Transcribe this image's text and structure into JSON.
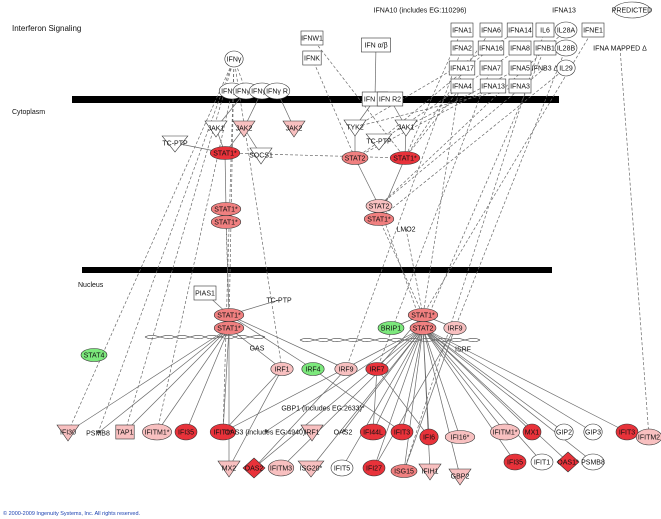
{
  "title": "Interferon Signaling",
  "regions": {
    "cytoplasm": "Cytoplasm",
    "nucleus": "Nucleus"
  },
  "copyright": "© 2000-2009 Ingenuity Systems, Inc. All rights reserved.",
  "colors": {
    "red": "#e8323a",
    "mid_red": "#f08080",
    "light_red": "#f8c0c0",
    "white": "#ffffff",
    "green": "#7ce87c",
    "membrane": "#000000"
  },
  "nodes": [
    {
      "id": "ifna10",
      "label": "IFNA10 (includes EG:110296)",
      "shape": "text",
      "color": "white"
    },
    {
      "id": "ifna13p",
      "label": "IFNA13",
      "shape": "text",
      "color": "white"
    },
    {
      "id": "predicted",
      "label": "PREDICTED",
      "shape": "circle",
      "color": "white"
    },
    {
      "id": "ifnw1",
      "label": "IFNW1",
      "shape": "square",
      "color": "white"
    },
    {
      "id": "ifnk",
      "label": "IFNK",
      "shape": "square",
      "color": "white"
    },
    {
      "id": "ifnab",
      "label": "IFN α/β",
      "shape": "square",
      "color": "white"
    },
    {
      "id": "ifna1",
      "label": "IFNA1",
      "shape": "square",
      "color": "white"
    },
    {
      "id": "ifna6",
      "label": "IFNA6",
      "shape": "square",
      "color": "white"
    },
    {
      "id": "ifna14",
      "label": "IFNA14",
      "shape": "square",
      "color": "white"
    },
    {
      "id": "il6",
      "label": "IL6",
      "shape": "square",
      "color": "white"
    },
    {
      "id": "il28a",
      "label": "IL28A",
      "shape": "circle",
      "color": "white"
    },
    {
      "id": "ifne1",
      "label": "IFNE1",
      "shape": "square",
      "color": "white"
    },
    {
      "id": "ifna2",
      "label": "IFNA2",
      "shape": "square",
      "color": "white"
    },
    {
      "id": "ifna16",
      "label": "IFNA16",
      "shape": "square",
      "color": "white"
    },
    {
      "id": "ifna8",
      "label": "IFNA8",
      "shape": "square",
      "color": "white"
    },
    {
      "id": "ifnb1",
      "label": "IFNB1",
      "shape": "square",
      "color": "white"
    },
    {
      "id": "il28b",
      "label": "IL28B",
      "shape": "circle",
      "color": "white"
    },
    {
      "id": "ifnamapped",
      "label": "IFNA MAPPED Δ",
      "shape": "text",
      "color": "white"
    },
    {
      "id": "ifna17",
      "label": "IFNA17",
      "shape": "square",
      "color": "white"
    },
    {
      "id": "ifna7",
      "label": "IFNA7",
      "shape": "square",
      "color": "white"
    },
    {
      "id": "ifna5",
      "label": "IFNA5",
      "shape": "square",
      "color": "white"
    },
    {
      "id": "ifnb3",
      "label": "IFNB3 Δ",
      "shape": "text",
      "color": "white"
    },
    {
      "id": "il29",
      "label": "IL29",
      "shape": "circle",
      "color": "white"
    },
    {
      "id": "ifna4",
      "label": "IFNA4",
      "shape": "square",
      "color": "white"
    },
    {
      "id": "ifna13",
      "label": "IFNA13",
      "shape": "square",
      "color": "white"
    },
    {
      "id": "ifna3",
      "label": "IFNA3",
      "shape": "square",
      "color": "white"
    },
    {
      "id": "ifng",
      "label": "IFNγ",
      "shape": "circle",
      "color": "white"
    },
    {
      "id": "ifngr1",
      "label": "IFNγ R",
      "shape": "circle",
      "color": "white"
    },
    {
      "id": "ifngr2",
      "label": "IFNγ R",
      "shape": "circle",
      "color": "white"
    },
    {
      "id": "ifngr3",
      "label": "IFNγ R",
      "shape": "circle",
      "color": "white"
    },
    {
      "id": "ifngr4",
      "label": "IFNγ R",
      "shape": "circle",
      "color": "white"
    },
    {
      "id": "ifnar1",
      "label": "IFN R1",
      "shape": "square",
      "color": "white"
    },
    {
      "id": "ifnar2",
      "label": "IFN R2",
      "shape": "square",
      "color": "white"
    },
    {
      "id": "jak1a",
      "label": "JAK1",
      "shape": "tri",
      "color": "white"
    },
    {
      "id": "jak2a",
      "label": "JAK2",
      "shape": "tri",
      "color": "light_red"
    },
    {
      "id": "jak2b",
      "label": "JAK2",
      "shape": "tri",
      "color": "light_red"
    },
    {
      "id": "tcptp1",
      "label": "TC-PTP",
      "shape": "tri",
      "color": "white"
    },
    {
      "id": "socs1",
      "label": "SOCS1",
      "shape": "tri",
      "color": "white"
    },
    {
      "id": "tyk2",
      "label": "TYK2",
      "shape": "tri",
      "color": "white"
    },
    {
      "id": "tcptp2",
      "label": "TC-PTP",
      "shape": "tri",
      "color": "white"
    },
    {
      "id": "jak1b",
      "label": "JAK1",
      "shape": "tri",
      "color": "white"
    },
    {
      "id": "stat1a",
      "label": "STAT1*",
      "shape": "ellipse",
      "color": "red"
    },
    {
      "id": "stat2a",
      "label": "STAT2",
      "shape": "ellipse",
      "color": "mid_red"
    },
    {
      "id": "stat1b",
      "label": "STAT1*",
      "shape": "ellipse",
      "color": "red"
    },
    {
      "id": "stat1c",
      "label": "STAT1*",
      "shape": "ellipse",
      "color": "mid_red"
    },
    {
      "id": "stat1d",
      "label": "STAT1*",
      "shape": "ellipse",
      "color": "mid_red"
    },
    {
      "id": "stat2b",
      "label": "STAT2",
      "shape": "ellipse",
      "color": "light_red"
    },
    {
      "id": "stat1e",
      "label": "STAT1*",
      "shape": "ellipse",
      "color": "mid_red"
    },
    {
      "id": "lmo2",
      "label": "LMO2",
      "shape": "text",
      "color": "white"
    },
    {
      "id": "pias1",
      "label": "PIAS1",
      "shape": "square",
      "color": "white"
    },
    {
      "id": "tcptp3",
      "label": "TC-PTP",
      "shape": "text",
      "color": "white"
    },
    {
      "id": "stat1f",
      "label": "STAT1*",
      "shape": "ellipse",
      "color": "mid_red"
    },
    {
      "id": "stat1g",
      "label": "STAT1*",
      "shape": "ellipse",
      "color": "mid_red"
    },
    {
      "id": "stat1h",
      "label": "STAT1*",
      "shape": "ellipse",
      "color": "mid_red"
    },
    {
      "id": "brip1",
      "label": "BRIP1",
      "shape": "ellipse",
      "color": "green"
    },
    {
      "id": "stat2c",
      "label": "STAT2",
      "shape": "ellipse",
      "color": "mid_red"
    },
    {
      "id": "irf9a",
      "label": "IRF9",
      "shape": "ellipse",
      "color": "light_red"
    },
    {
      "id": "isrf",
      "label": "ISRF",
      "shape": "text",
      "color": "white"
    },
    {
      "id": "stat4",
      "label": "STAT4",
      "shape": "ellipse",
      "color": "green"
    },
    {
      "id": "gas",
      "label": "GAS",
      "shape": "text",
      "color": "white"
    },
    {
      "id": "irf1",
      "label": "IRF1",
      "shape": "ellipse",
      "color": "light_red"
    },
    {
      "id": "irf4",
      "label": "IRF4",
      "shape": "ellipse",
      "color": "green"
    },
    {
      "id": "irf9b",
      "label": "IRF9",
      "shape": "ellipse",
      "color": "light_red"
    },
    {
      "id": "irf7",
      "label": "IRF7",
      "shape": "ellipse",
      "color": "red"
    },
    {
      "id": "gbp1",
      "label": "GBP1 (includes EG:2633)*",
      "shape": "text",
      "color": "white"
    },
    {
      "id": "ifi30",
      "label": "IFI30",
      "shape": "tri",
      "color": "light_red"
    },
    {
      "id": "psmb8a",
      "label": "PSMB8",
      "shape": "text",
      "color": "white"
    },
    {
      "id": "tap1",
      "label": "TAP1",
      "shape": "square",
      "color": "light_red"
    },
    {
      "id": "ifitm1a",
      "label": "IFITM1*",
      "shape": "circle",
      "color": "light_red"
    },
    {
      "id": "ifi35a",
      "label": "IFI35",
      "shape": "circle",
      "color": "red"
    },
    {
      "id": "ifit1",
      "label": "IFIT1*",
      "shape": "circle",
      "color": "red"
    },
    {
      "id": "oas3",
      "label": "OAS3 (includes EG:4940)",
      "shape": "text",
      "color": "white"
    },
    {
      "id": "irf2",
      "label": "IRF1",
      "shape": "tri",
      "color": "light_red"
    },
    {
      "id": "oas2a",
      "label": "OAS2",
      "shape": "text",
      "color": "white"
    },
    {
      "id": "ifi44l",
      "label": "IFI44L",
      "shape": "circle",
      "color": "red"
    },
    {
      "id": "ifit3a",
      "label": "IFIT3",
      "shape": "circle",
      "color": "red"
    },
    {
      "id": "ifi6",
      "label": "IFI6",
      "shape": "circle",
      "color": "red"
    },
    {
      "id": "ifi16",
      "label": "IFI16*",
      "shape": "ellipse",
      "color": "light_red"
    },
    {
      "id": "ifitm1b",
      "label": "IFITM1*",
      "shape": "circle",
      "color": "light_red"
    },
    {
      "id": "mx1",
      "label": "MX1",
      "shape": "circle",
      "color": "red"
    },
    {
      "id": "gip2",
      "label": "GIP2",
      "shape": "circle",
      "color": "white"
    },
    {
      "id": "gip3",
      "label": "GIP3",
      "shape": "circle",
      "color": "white"
    },
    {
      "id": "ifit3b",
      "label": "IFIT3",
      "shape": "circle",
      "color": "red"
    },
    {
      "id": "ifitm2",
      "label": "IFITM2",
      "shape": "circle",
      "color": "light_red"
    },
    {
      "id": "mx2",
      "label": "MX2",
      "shape": "tri",
      "color": "light_red"
    },
    {
      "id": "oas2b",
      "label": "OAS2",
      "shape": "diamond",
      "color": "red"
    },
    {
      "id": "ifitm3",
      "label": "IFITM3",
      "shape": "circle",
      "color": "light_red"
    },
    {
      "id": "isg20",
      "label": "ISG20*",
      "shape": "tri",
      "color": "light_red"
    },
    {
      "id": "ifit5",
      "label": "IFIT5",
      "shape": "circle",
      "color": "white"
    },
    {
      "id": "ifi27",
      "label": "IFI27",
      "shape": "circle",
      "color": "red"
    },
    {
      "id": "isg15",
      "label": "ISG15",
      "shape": "ellipse",
      "color": "mid_red"
    },
    {
      "id": "ifih1",
      "label": "IFIH1",
      "shape": "tri",
      "color": "light_red"
    },
    {
      "id": "gbp2",
      "label": "GBP2",
      "shape": "tri",
      "color": "light_red"
    },
    {
      "id": "ifi35b",
      "label": "IFI35",
      "shape": "circle",
      "color": "red"
    },
    {
      "id": "ifit1b",
      "label": "IFIT1",
      "shape": "circle",
      "color": "white"
    },
    {
      "id": "oas1",
      "label": "OAS1*",
      "shape": "diamond",
      "color": "red"
    },
    {
      "id": "psmb8b",
      "label": "PSMB8",
      "shape": "circle",
      "color": "white"
    }
  ]
}
